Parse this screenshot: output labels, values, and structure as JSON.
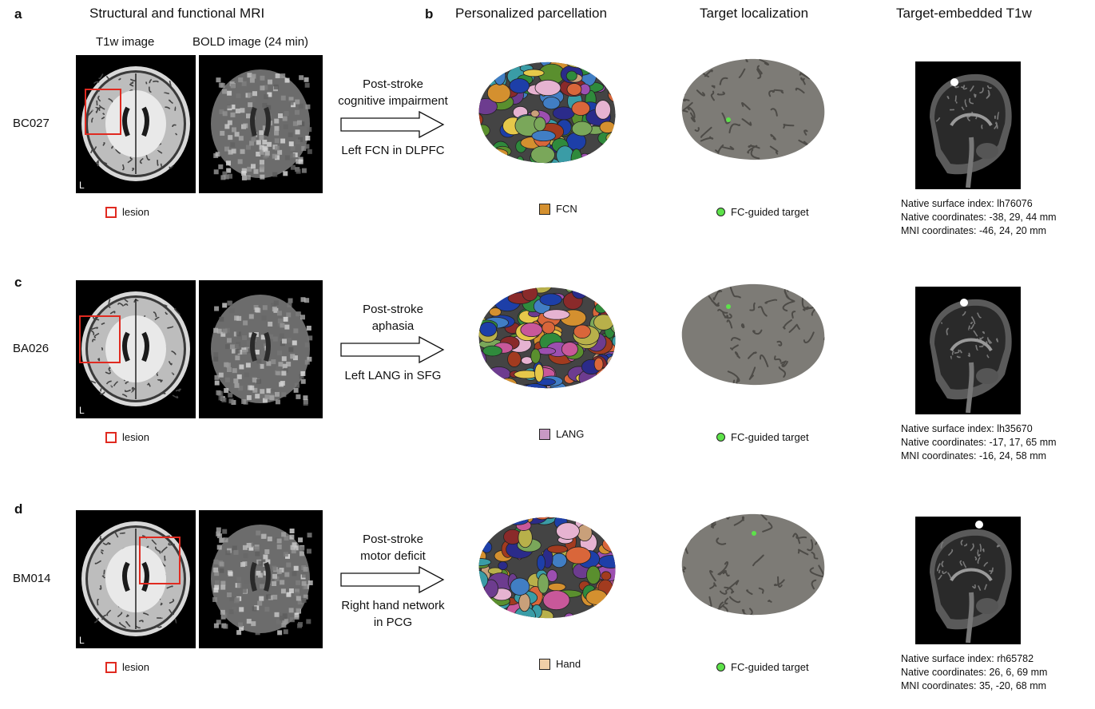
{
  "headers": {
    "panel_a": "a",
    "panel_b": "b",
    "col_mri": "Structural and functional MRI",
    "col_parcellation": "Personalized parcellation",
    "col_target": "Target localization",
    "col_t1w": "Target-embedded T1w",
    "t1w_image": "T1w image",
    "bold_image": "BOLD image (24 min)"
  },
  "rows": [
    {
      "panel": "",
      "id": "BC027",
      "side_mark": "L",
      "lesion_label": "lesion",
      "arrow_top": [
        "Post-stroke",
        "cognitive impairment"
      ],
      "arrow_bottom": [
        "Left FCN in DLPFC"
      ],
      "network_label": "FCN",
      "network_color": "#d4902f",
      "target_label": "FC-guided target",
      "info": [
        "Native surface index: lh76076",
        "Native coordinates: -38, 29, 44 mm",
        "MNI coordinates: -46, 24, 20 mm"
      ]
    },
    {
      "panel": "c",
      "id": "BA026",
      "side_mark": "L",
      "lesion_label": "lesion",
      "arrow_top": [
        "Post-stroke",
        "aphasia"
      ],
      "arrow_bottom": [
        "Left LANG in SFG"
      ],
      "network_label": "LANG",
      "network_color": "#c899c4",
      "target_label": "FC-guided target",
      "info": [
        "Native surface index: lh35670",
        "Native coordinates: -17, 17, 65 mm",
        "MNI coordinates: -16, 24, 58 mm"
      ]
    },
    {
      "panel": "d",
      "id": "BM014",
      "side_mark": "L",
      "lesion_label": "lesion",
      "arrow_top": [
        "Post-stroke",
        "motor deficit"
      ],
      "arrow_bottom": [
        "Right hand network",
        "in PCG"
      ],
      "network_label": "Hand",
      "network_color": "#f0cfa8",
      "target_label": "FC-guided target",
      "info": [
        "Native surface index: rh65782",
        "Native coordinates: 26, 6, 69 mm",
        "MNI coordinates: 35, -20, 68 mm"
      ]
    }
  ],
  "colors": {
    "lesion": "#e02a20",
    "target": "#5de24a",
    "cortex": "#7d7b76"
  }
}
